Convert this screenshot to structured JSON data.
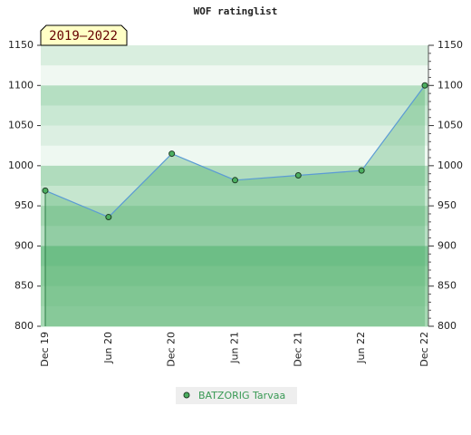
{
  "chart_data": {
    "type": "area",
    "title": "WOF ratinglist",
    "annotation": "2019–2022",
    "categories": [
      "Dec 19",
      "Jun 20",
      "Dec 20",
      "Jun 21",
      "Dec 21",
      "Jun 22",
      "Dec 22"
    ],
    "series": [
      {
        "name": "BATZORIG Tarvaa",
        "color": "#5b9bd5",
        "values": [
          969,
          936,
          1015,
          982,
          988,
          994,
          1100
        ]
      }
    ],
    "ylim": [
      800,
      1150
    ],
    "yticks": [
      800,
      850,
      900,
      950,
      1000,
      1050,
      1100,
      1150
    ],
    "y2lim": [
      800,
      1150
    ],
    "y2ticks": [
      800,
      850,
      900,
      950,
      1000,
      1050,
      1100,
      1150
    ],
    "legend": "bottom"
  }
}
